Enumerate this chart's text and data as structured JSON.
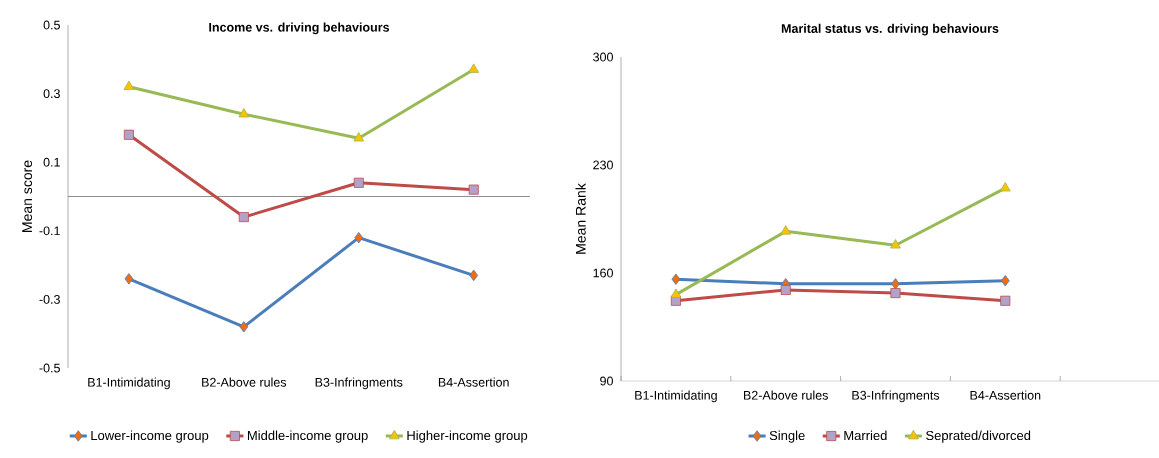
{
  "chart_data": [
    {
      "type": "line",
      "title": "Income vs. driving behaviours",
      "ylabel": "Mean score",
      "categories": [
        "B1-Intimidating",
        "B2-Above rules",
        "B3-Infringments",
        "B4-Assertion"
      ],
      "series": [
        {
          "name": "Lower-income group",
          "color": "#4a7ebb",
          "marker": "diamond",
          "values": [
            -0.24,
            -0.38,
            -0.12,
            -0.23
          ]
        },
        {
          "name": "Middle-income group",
          "color": "#be4b48",
          "marker": "square",
          "values": [
            0.18,
            -0.06,
            0.04,
            0.02
          ]
        },
        {
          "name": "Higher-income group",
          "color": "#98b954",
          "marker": "triangle",
          "values": [
            0.32,
            0.24,
            0.17,
            0.37
          ]
        }
      ],
      "ylim": [
        -0.5,
        0.5
      ],
      "yticks": [
        -0.5,
        -0.3,
        -0.1,
        0.1,
        0.3,
        0.5
      ],
      "ref_lines": [
        {
          "axis": "y",
          "value": 0,
          "color": "#808080"
        }
      ],
      "legend": "bottom"
    },
    {
      "type": "line",
      "title": "Marital status vs. driving behaviours",
      "ylabel": "Mean Rank",
      "categories": [
        "B1-Intimidating",
        "B2-Above rules",
        "B3-Infringments",
        "B4-Assertion",
        null
      ],
      "series": [
        {
          "name": "Single",
          "color": "#4a7ebb",
          "marker": "diamond",
          "values": [
            156,
            153,
            153,
            155,
            null
          ]
        },
        {
          "name": "Married",
          "color": "#be4b48",
          "marker": "square",
          "values": [
            142,
            149,
            147,
            142,
            null
          ]
        },
        {
          "name": "Seprated/divorced",
          "color": "#98b954",
          "marker": "triangle",
          "values": [
            146,
            187,
            178,
            215,
            null
          ]
        }
      ],
      "ylim": [
        90,
        300
      ],
      "yticks": [
        90,
        160,
        230,
        300
      ],
      "legend": "bottom"
    }
  ]
}
